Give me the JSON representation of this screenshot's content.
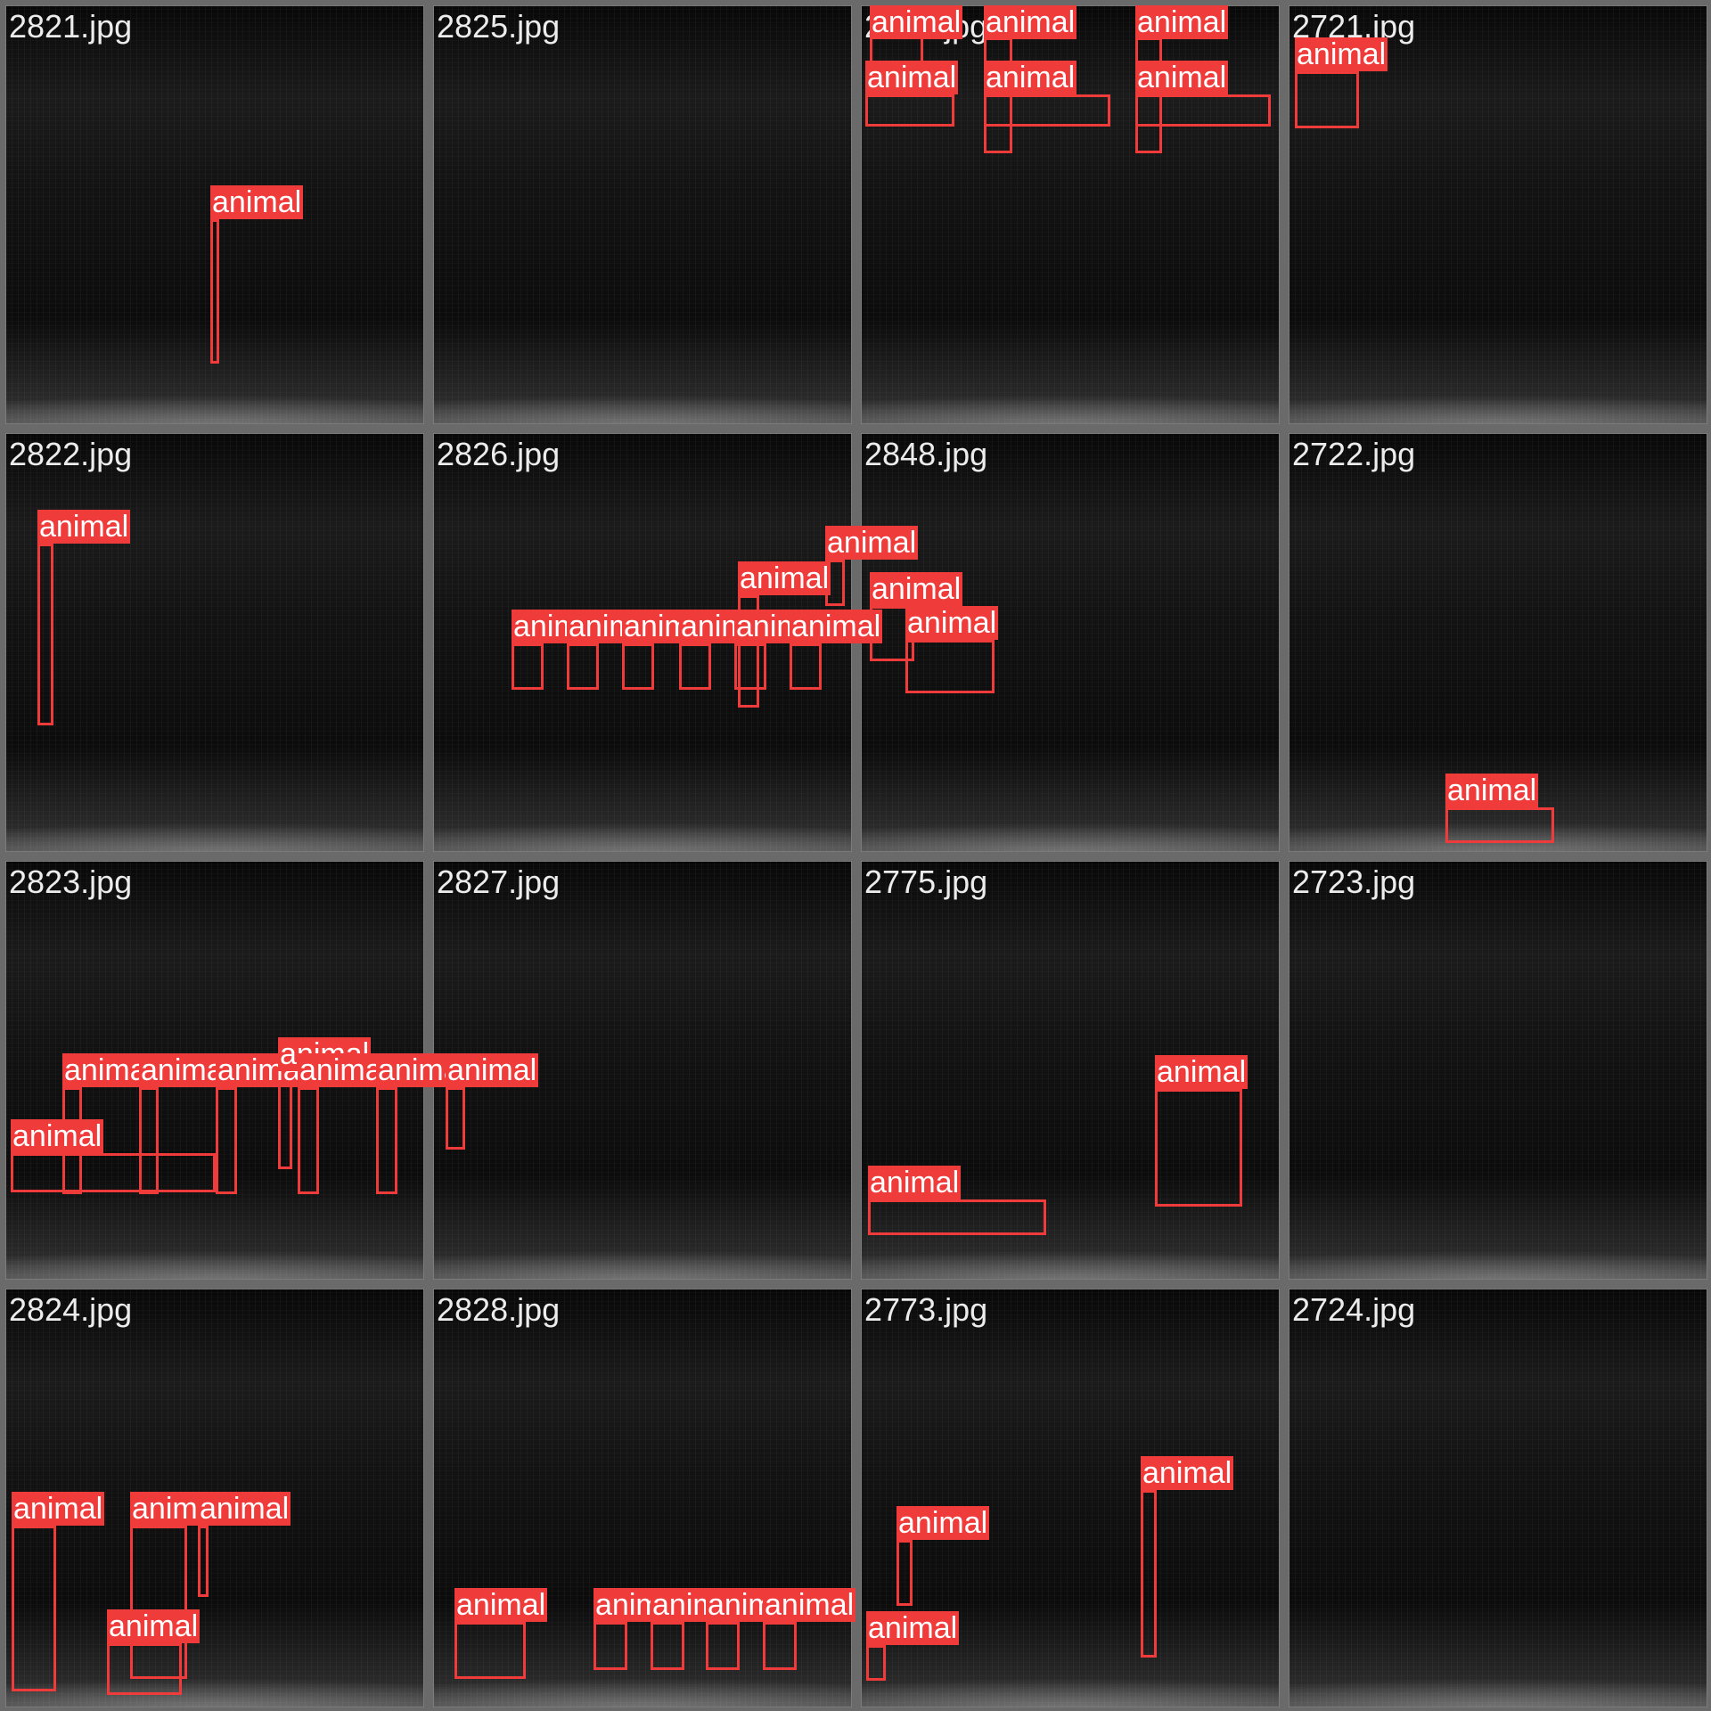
{
  "tiles": [
    {
      "file": "2821.jpg",
      "boxes": [
        {
          "label": "animal"
        }
      ]
    },
    {
      "file": "2825.jpg",
      "boxes": []
    },
    {
      "file": "2830.jpg",
      "boxes": [
        {
          "label": "animal"
        },
        {
          "label": "animal"
        },
        {
          "label": "animal"
        },
        {
          "label": "animal"
        },
        {
          "label": "animal"
        },
        {
          "label": "animal"
        }
      ]
    },
    {
      "file": "2721.jpg",
      "boxes": [
        {
          "label": "animal"
        }
      ]
    },
    {
      "file": "2822.jpg",
      "boxes": [
        {
          "label": "animal"
        }
      ]
    },
    {
      "file": "2826.jpg",
      "boxes": [
        {
          "label": "animal"
        },
        {
          "label": "animal"
        },
        {
          "label": "animal"
        },
        {
          "label": "animal"
        },
        {
          "label": "animal"
        },
        {
          "label": "animal"
        },
        {
          "label": "animal"
        },
        {
          "label": "animal"
        }
      ]
    },
    {
      "file": "2848.jpg",
      "boxes": [
        {
          "label": "animal"
        },
        {
          "label": "animal"
        }
      ]
    },
    {
      "file": "2722.jpg",
      "boxes": [
        {
          "label": "animal"
        }
      ]
    },
    {
      "file": "2823.jpg",
      "boxes": [
        {
          "label": "animal"
        },
        {
          "label": "animal"
        },
        {
          "label": "animal"
        },
        {
          "label": "animal"
        },
        {
          "label": "animal"
        },
        {
          "label": "animal"
        },
        {
          "label": "animal"
        },
        {
          "label": "animal"
        }
      ]
    },
    {
      "file": "2827.jpg",
      "boxes": []
    },
    {
      "file": "2775.jpg",
      "boxes": [
        {
          "label": "animal"
        },
        {
          "label": "animal"
        }
      ]
    },
    {
      "file": "2723.jpg",
      "boxes": []
    },
    {
      "file": "2824.jpg",
      "boxes": [
        {
          "label": "animal"
        },
        {
          "label": "animal"
        },
        {
          "label": "animal"
        },
        {
          "label": "animal"
        }
      ]
    },
    {
      "file": "2828.jpg",
      "boxes": [
        {
          "label": "animal"
        },
        {
          "label": "animal"
        },
        {
          "label": "animal"
        },
        {
          "label": "animal"
        },
        {
          "label": "animal"
        }
      ]
    },
    {
      "file": "2773.jpg",
      "boxes": [
        {
          "label": "animal"
        },
        {
          "label": "animal"
        },
        {
          "label": "animal"
        }
      ]
    },
    {
      "file": "2724.jpg",
      "boxes": []
    }
  ]
}
